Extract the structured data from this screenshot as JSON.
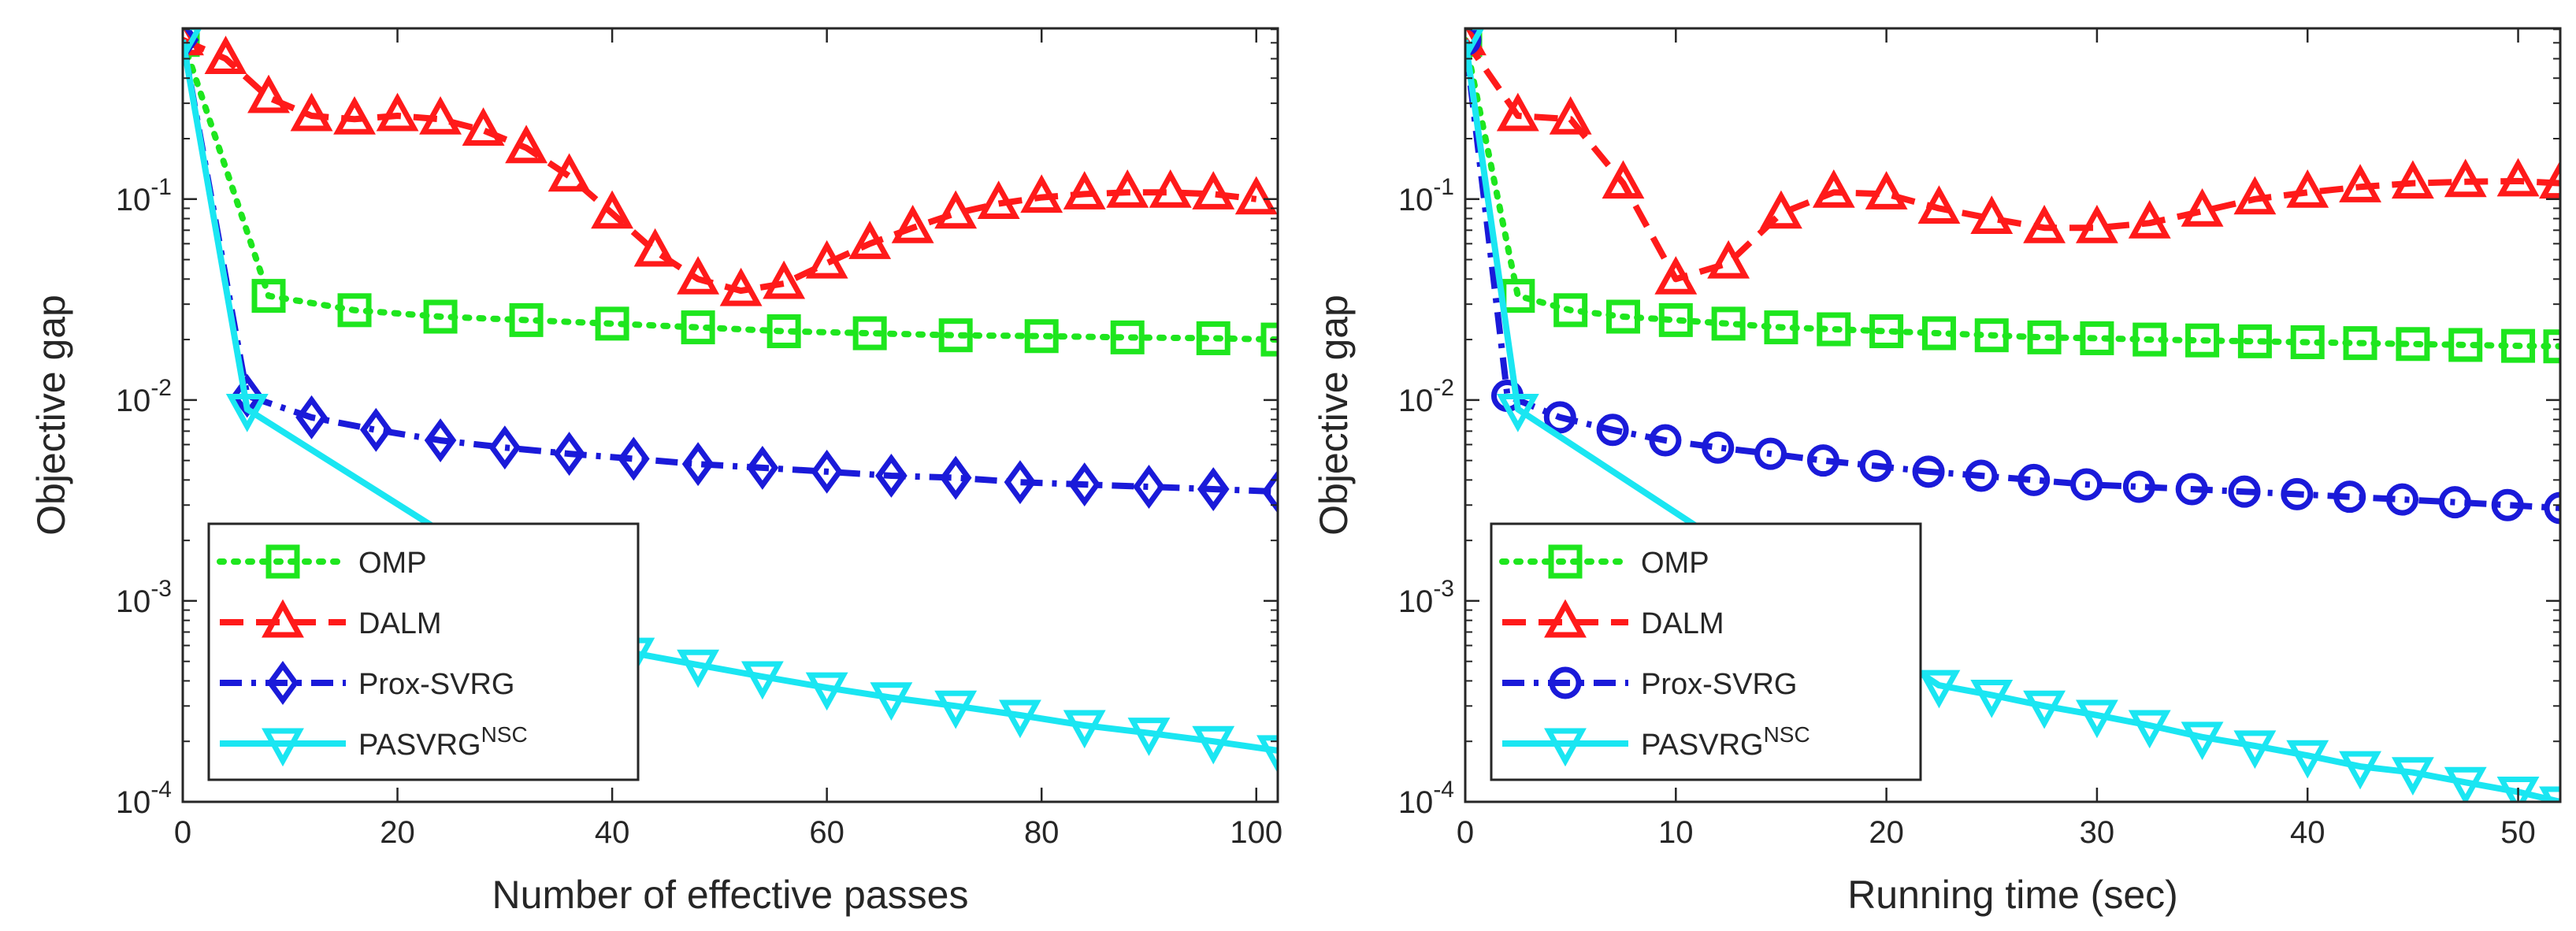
{
  "chart_data": [
    {
      "type": "line",
      "yscale": "log",
      "xlabel": "Number of effective passes",
      "ylabel": "Objective gap",
      "xlim": [
        0,
        102
      ],
      "ylim_exponent": [
        -4,
        -0.15
      ],
      "xticks": [
        0,
        20,
        40,
        60,
        80,
        100
      ],
      "xtick_labels": [
        "0",
        "20",
        "40",
        "60",
        "80",
        "100"
      ],
      "yticks": [
        -4,
        -3,
        -2,
        -1
      ],
      "ytick_labels": [
        {
          "base": "10",
          "exp": "-4"
        },
        {
          "base": "10",
          "exp": "-3"
        },
        {
          "base": "10",
          "exp": "-2"
        },
        {
          "base": "10",
          "exp": "-1"
        }
      ],
      "legend_position": "lower-left",
      "series": [
        {
          "name": "OMP",
          "sup": "",
          "color": "#1ee61e",
          "dash": "dot",
          "marker": "square",
          "x": [
            0,
            8,
            16,
            24,
            32,
            40,
            48,
            56,
            64,
            72,
            80,
            88,
            96,
            102
          ],
          "y": [
            0.62,
            0.033,
            0.028,
            0.026,
            0.025,
            0.024,
            0.023,
            0.022,
            0.0215,
            0.021,
            0.0208,
            0.0205,
            0.0203,
            0.02
          ]
        },
        {
          "name": "DALM",
          "sup": "",
          "color": "#ff1a1a",
          "dash": "dash",
          "marker": "triangle-up",
          "x": [
            0,
            4,
            8,
            12,
            16,
            20,
            24,
            28,
            32,
            36,
            40,
            44,
            48,
            52,
            56,
            60,
            64,
            68,
            72,
            76,
            80,
            84,
            88,
            92,
            96,
            100
          ],
          "y": [
            0.62,
            0.5,
            0.32,
            0.26,
            0.25,
            0.26,
            0.25,
            0.22,
            0.18,
            0.13,
            0.085,
            0.055,
            0.04,
            0.035,
            0.038,
            0.048,
            0.06,
            0.072,
            0.085,
            0.095,
            0.102,
            0.106,
            0.108,
            0.108,
            0.106,
            0.1
          ]
        },
        {
          "name": "Prox-SVRG",
          "sup": "",
          "color": "#1a1ad9",
          "dash": "dashdot",
          "marker": "diamond",
          "x": [
            0,
            6,
            12,
            18,
            24,
            30,
            36,
            42,
            48,
            54,
            60,
            66,
            72,
            78,
            84,
            90,
            96,
            102
          ],
          "y": [
            0.62,
            0.0105,
            0.0082,
            0.0071,
            0.0063,
            0.0058,
            0.0054,
            0.0051,
            0.0048,
            0.0046,
            0.0044,
            0.0042,
            0.0041,
            0.0039,
            0.0038,
            0.0037,
            0.0036,
            0.0035
          ]
        },
        {
          "name": "PASVRG",
          "sup": "NSC",
          "color": "#1ae6f2",
          "dash": "solid",
          "marker": "triangle-down",
          "x": [
            0,
            6,
            42,
            48,
            54,
            60,
            66,
            72,
            78,
            84,
            90,
            96,
            102
          ],
          "y": [
            0.62,
            0.009,
            0.00055,
            0.00048,
            0.00042,
            0.00037,
            0.00033,
            0.0003,
            0.00027,
            0.00024,
            0.00022,
            0.0002,
            0.00018
          ]
        }
      ],
      "legend": [
        {
          "name": "OMP",
          "sup": ""
        },
        {
          "name": "DALM",
          "sup": ""
        },
        {
          "name": "Prox-SVRG",
          "sup": ""
        },
        {
          "name": "PASVRG",
          "sup": "NSC"
        }
      ]
    },
    {
      "type": "line",
      "yscale": "log",
      "xlabel": "Running time (sec)",
      "ylabel": "Objective gap",
      "xlim": [
        0,
        52
      ],
      "ylim_exponent": [
        -4,
        -0.15
      ],
      "xticks": [
        0,
        10,
        20,
        30,
        40,
        50
      ],
      "xtick_labels": [
        "0",
        "10",
        "20",
        "30",
        "40",
        "50"
      ],
      "yticks": [
        -4,
        -3,
        -2,
        -1
      ],
      "ytick_labels": [
        {
          "base": "10",
          "exp": "-4"
        },
        {
          "base": "10",
          "exp": "-3"
        },
        {
          "base": "10",
          "exp": "-2"
        },
        {
          "base": "10",
          "exp": "-1"
        }
      ],
      "legend_position": "lower-left",
      "series": [
        {
          "name": "OMP",
          "sup": "",
          "color": "#1ee61e",
          "dash": "dot",
          "marker": "square",
          "x": [
            0,
            2.5,
            5,
            7.5,
            10,
            12.5,
            15,
            17.5,
            20,
            22.5,
            25,
            27.5,
            30,
            32.5,
            35,
            37.5,
            40,
            42.5,
            45,
            47.5,
            50,
            52
          ],
          "y": [
            0.62,
            0.033,
            0.028,
            0.026,
            0.025,
            0.024,
            0.023,
            0.0225,
            0.022,
            0.0215,
            0.021,
            0.0205,
            0.0203,
            0.02,
            0.0198,
            0.0196,
            0.0194,
            0.0192,
            0.019,
            0.0188,
            0.0186,
            0.0185
          ]
        },
        {
          "name": "DALM",
          "sup": "",
          "color": "#ff1a1a",
          "dash": "dash",
          "marker": "triangle-up",
          "x": [
            0,
            2.5,
            5,
            7.5,
            10,
            12.5,
            15,
            17.5,
            20,
            22.5,
            25,
            27.5,
            30,
            32.5,
            35,
            37.5,
            40,
            42.5,
            45,
            47.5,
            50,
            52
          ],
          "y": [
            0.62,
            0.26,
            0.25,
            0.12,
            0.04,
            0.048,
            0.085,
            0.108,
            0.106,
            0.09,
            0.08,
            0.072,
            0.072,
            0.076,
            0.087,
            0.1,
            0.108,
            0.115,
            0.12,
            0.122,
            0.123,
            0.12
          ]
        },
        {
          "name": "Prox-SVRG",
          "sup": "",
          "color": "#1a1ad9",
          "dash": "dashdot",
          "marker": "circle",
          "x": [
            0,
            2,
            4.5,
            7,
            9.5,
            12,
            14.5,
            17,
            19.5,
            22,
            24.5,
            27,
            29.5,
            32,
            34.5,
            37,
            39.5,
            42,
            44.5,
            47,
            49.5,
            52
          ],
          "y": [
            0.62,
            0.0105,
            0.0082,
            0.0071,
            0.0063,
            0.0058,
            0.0054,
            0.005,
            0.0047,
            0.0044,
            0.0042,
            0.004,
            0.0038,
            0.0037,
            0.0036,
            0.0035,
            0.0034,
            0.0033,
            0.0032,
            0.0031,
            0.003,
            0.0029
          ]
        },
        {
          "name": "PASVRG",
          "sup": "NSC",
          "color": "#1ae6f2",
          "dash": "solid",
          "marker": "triangle-down",
          "x": [
            0,
            2.5,
            22.5,
            25,
            27.5,
            30,
            32.5,
            35,
            37.5,
            40,
            42.5,
            45,
            47.5,
            50,
            52
          ],
          "y": [
            0.62,
            0.009,
            0.00038,
            0.00034,
            0.0003,
            0.00027,
            0.00024,
            0.00021,
            0.00019,
            0.00017,
            0.00015,
            0.00014,
            0.000125,
            0.000112,
            0.0001
          ]
        }
      ],
      "legend": [
        {
          "name": "OMP",
          "sup": ""
        },
        {
          "name": "DALM",
          "sup": ""
        },
        {
          "name": "Prox-SVRG",
          "sup": ""
        },
        {
          "name": "PASVRG",
          "sup": "NSC"
        }
      ]
    }
  ]
}
